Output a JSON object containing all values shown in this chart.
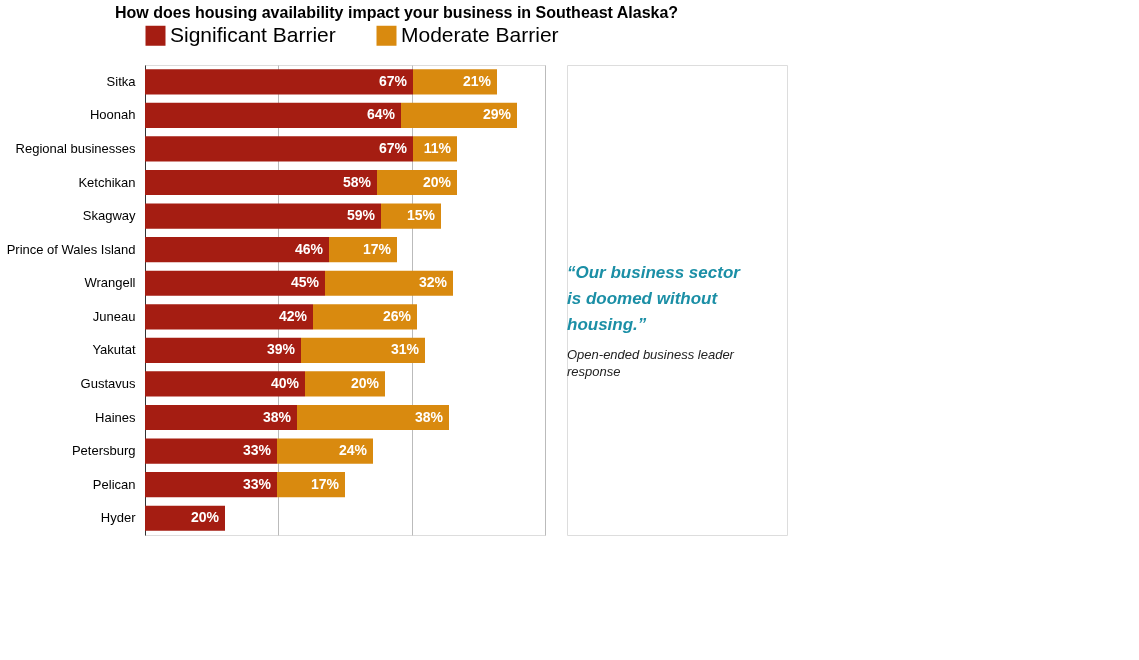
{
  "chart_data": {
    "type": "bar",
    "orientation": "horizontal",
    "stacked": true,
    "relative": false,
    "title": "How does housing availability impact your business in Southeast Alaska?",
    "categories": [
      "Sitka",
      "Hoonah",
      "Regional businesses",
      "Ketchikan",
      "Skagway",
      "Prince of Wales Island",
      "Wrangell",
      "Juneau",
      "Yakutat",
      "Gustavus",
      "Haines",
      "Petersburg",
      "Pelican",
      "Hyder"
    ],
    "series": [
      {
        "name": "Significant Barrier",
        "color": "#a51d12",
        "values": [
          67,
          64,
          67,
          58,
          59,
          46,
          45,
          42,
          39,
          40,
          38,
          33,
          33,
          20
        ],
        "value_labels": [
          "67%",
          "64%",
          "67%",
          "58%",
          "59%",
          "46%",
          "45%",
          "42%",
          "39%",
          "40%",
          "38%",
          "33%",
          "33%",
          "20%"
        ]
      },
      {
        "name": "Moderate Barrier",
        "color": "#d98a0f",
        "values": [
          21,
          29,
          11,
          20,
          15,
          17,
          32,
          26,
          31,
          20,
          38,
          24,
          17,
          null
        ],
        "value_labels": [
          "21%",
          "29%",
          "11%",
          "20%",
          "15%",
          "17%",
          "32%",
          "26%",
          "31%",
          "20%",
          "38%",
          "24%",
          "17%",
          null
        ]
      }
    ],
    "xlim": [
      0,
      100
    ],
    "xticks": [
      {
        "value": 0,
        "label": null
      },
      {
        "value": 33.3,
        "label": null
      },
      {
        "value": 66.7,
        "label": null
      },
      {
        "value": 100,
        "label": null
      }
    ],
    "grid": "x",
    "tick_labels": "y",
    "legend": "top",
    "annotations": [
      "“Our business sector is doomed without housing.”",
      "Open-ended business leader response"
    ]
  }
}
